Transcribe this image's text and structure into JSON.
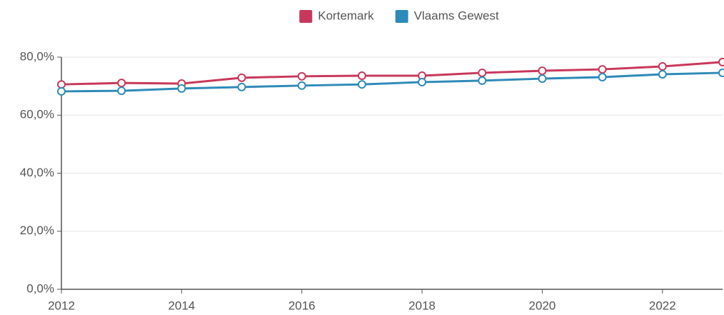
{
  "chart_data": {
    "type": "line",
    "x": [
      2012,
      2013,
      2014,
      2015,
      2016,
      2017,
      2018,
      2019,
      2020,
      2021,
      2022,
      2023
    ],
    "series": [
      {
        "name": "Kortemark",
        "color": "#c8385a",
        "values": [
          70.6,
          71.1,
          70.9,
          72.9,
          73.4,
          73.6,
          73.6,
          74.6,
          75.3,
          75.8,
          76.8,
          78.3
        ]
      },
      {
        "name": "Vlaams Gewest",
        "color": "#2e8ab8",
        "values": [
          68.2,
          68.4,
          69.2,
          69.7,
          70.2,
          70.6,
          71.4,
          71.9,
          72.6,
          73.1,
          74.1,
          74.6
        ]
      }
    ],
    "xlim": [
      2012,
      2023
    ],
    "xticks": [
      2012,
      2014,
      2016,
      2018,
      2020,
      2022
    ],
    "ylim": [
      0,
      80
    ],
    "yticks": [
      {
        "value": 0,
        "label": "0,0%"
      },
      {
        "value": 20,
        "label": "20,0%"
      },
      {
        "value": 40,
        "label": "40,0%"
      },
      {
        "value": 60,
        "label": "60,0%"
      },
      {
        "value": 80,
        "label": "80,0%"
      }
    ],
    "grid": true,
    "legend": "top"
  }
}
